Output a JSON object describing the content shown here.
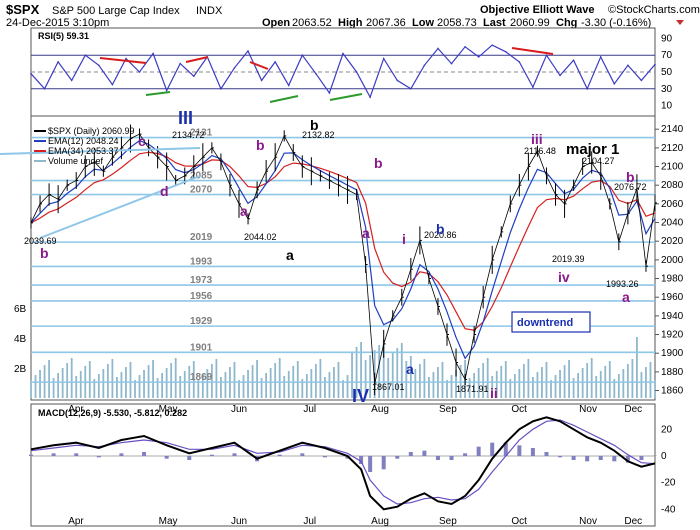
{
  "header": {
    "symbol": "$SPX",
    "name": "S&P 500 Large Cap Index",
    "exchange": "INDX",
    "datetime": "24-Dec-2015 3:10pm",
    "open_label": "Open",
    "open": "2063.52",
    "high_label": "High",
    "high": "2067.36",
    "low_label": "Low",
    "low": "2058.73",
    "last_label": "Last",
    "last": "2060.99",
    "chg_label": "Chg",
    "chg": "-3.30 (-0.16%)",
    "brand_left": "Objective Elliott Wave",
    "brand_right": "©StockCharts.com"
  },
  "chart_data": [
    {
      "type": "line",
      "title": "RSI(5) 59.31",
      "y_ticks": [
        10,
        30,
        50,
        70,
        90
      ],
      "ylim": [
        0,
        100
      ],
      "guides": [
        30,
        50,
        70
      ],
      "series": [
        {
          "name": "RSI(5)",
          "x_days": [
            0,
            6,
            12,
            18,
            24,
            30,
            36,
            42,
            48,
            54,
            60,
            66,
            72,
            78,
            84,
            90,
            96,
            102,
            108,
            114,
            120,
            126,
            132,
            138,
            144,
            150,
            156,
            162,
            168,
            174,
            180,
            186,
            192,
            198,
            204,
            210,
            216,
            222,
            228,
            234,
            240,
            246,
            252,
            258,
            264,
            270,
            276
          ],
          "values": [
            48,
            30,
            62,
            40,
            70,
            58,
            35,
            66,
            50,
            72,
            28,
            60,
            45,
            68,
            30,
            55,
            75,
            40,
            62,
            34,
            70,
            48,
            25,
            72,
            50,
            20,
            66,
            40,
            30,
            58,
            78,
            60,
            80,
            68,
            82,
            74,
            62,
            32,
            70,
            46,
            64,
            30,
            68,
            36,
            58,
            40,
            59
          ]
        }
      ]
    },
    {
      "type": "line",
      "title": "$SPX (Daily) 2060.99",
      "y_ticks": [
        1860,
        1880,
        1900,
        1920,
        1940,
        1960,
        1980,
        2000,
        2020,
        2040,
        2060,
        2080,
        2100,
        2120,
        2140
      ],
      "ylim": [
        1852,
        2152
      ],
      "x_tick_labels": [
        "Apr",
        "May",
        "Jun",
        "Jul",
        "Aug",
        "Sep",
        "Oct",
        "Nov",
        "Dec"
      ],
      "volume_tick_labels": [
        "2B",
        "4B",
        "6B"
      ],
      "levels": [
        {
          "value": 2131,
          "label": "2131"
        },
        {
          "value": 2085,
          "label": "2085"
        },
        {
          "value": 2070,
          "label": "2070"
        },
        {
          "value": 2019,
          "label": "2019"
        },
        {
          "value": 1993,
          "label": "1993"
        },
        {
          "value": 1973,
          "label": "1973"
        },
        {
          "value": 1956,
          "label": "1956"
        },
        {
          "value": 1929,
          "label": "1929"
        },
        {
          "value": 1901,
          "label": "1901"
        },
        {
          "value": 1869,
          "label": "1869"
        }
      ],
      "legend": [
        {
          "name": "$SPX (Daily) 2060.99",
          "color": "#000000"
        },
        {
          "name": "EMA(12) 2048.24",
          "color": "#1f3fbf"
        },
        {
          "name": "EMA(34) 2053.37",
          "color": "#d62020"
        },
        {
          "name": "Volume undef",
          "color": "#8fb8cc"
        }
      ],
      "price_labels": [
        {
          "text": "2039.69"
        },
        {
          "text": "2134.72"
        },
        {
          "text": "2044.02"
        },
        {
          "text": "2132.82"
        },
        {
          "text": "2020.86"
        },
        {
          "text": "1867.01"
        },
        {
          "text": "1871.91"
        },
        {
          "text": "2116.48"
        },
        {
          "text": "2104.27"
        },
        {
          "text": "2019.39"
        },
        {
          "text": "2076.72"
        },
        {
          "text": "1993.26"
        }
      ],
      "wave_labels": [
        {
          "text": "b",
          "color": "#8b1a8b"
        },
        {
          "text": "III",
          "color": "#1a2fb0"
        },
        {
          "text": "c",
          "color": "#8b1a8b"
        },
        {
          "text": "d",
          "color": "#8b1a8b"
        },
        {
          "text": "b",
          "color": "#8b1a8b"
        },
        {
          "text": "a",
          "color": "#8b1a8b"
        },
        {
          "text": "a",
          "color": "#000000"
        },
        {
          "text": "b",
          "color": "#000000"
        },
        {
          "text": "b",
          "color": "#8b1a8b"
        },
        {
          "text": "a",
          "color": "#8b1a8b"
        },
        {
          "text": "i",
          "color": "#8b1a8b"
        },
        {
          "text": "b",
          "color": "#1a2fb0"
        },
        {
          "text": "a",
          "color": "#1a2fb0"
        },
        {
          "text": "IV",
          "color": "#1a2fb0"
        },
        {
          "text": "ii",
          "color": "#8b1a8b"
        },
        {
          "text": "iii",
          "color": "#8b1a8b"
        },
        {
          "text": "major 1",
          "color": "#000000"
        },
        {
          "text": "iv",
          "color": "#8b1a8b"
        },
        {
          "text": "b",
          "color": "#8b1a8b"
        },
        {
          "text": "a",
          "color": "#8b1a8b"
        }
      ],
      "annotation": "downtrend",
      "series": [
        {
          "name": "$SPX",
          "x_days": [
            0,
            4,
            8,
            12,
            16,
            20,
            24,
            28,
            32,
            36,
            40,
            44,
            48,
            52,
            56,
            60,
            64,
            68,
            72,
            76,
            80,
            84,
            88,
            92,
            96,
            100,
            104,
            108,
            112,
            116,
            120,
            124,
            128,
            132,
            136,
            140,
            144,
            148,
            152,
            156,
            160,
            164,
            168,
            172,
            176,
            180,
            184,
            188,
            192,
            196,
            200,
            204,
            208,
            212,
            216,
            220,
            224,
            228,
            232,
            236,
            240,
            244,
            248,
            252,
            256,
            260,
            264,
            268,
            272,
            276
          ],
          "values": [
            2039.69,
            2060,
            2070,
            2065,
            2080,
            2085,
            2100,
            2105,
            2095,
            2110,
            2120,
            2130,
            2134.72,
            2120,
            2110,
            2100,
            2085,
            2090,
            2100,
            2110,
            2120,
            2105,
            2080,
            2060,
            2044.02,
            2075,
            2095,
            2110,
            2132.82,
            2115,
            2100,
            2095,
            2090,
            2085,
            2080,
            2075,
            2070,
            1995,
            1867.01,
            1910,
            1940,
            1960,
            1990,
            2020.86,
            1980,
            1950,
            1920,
            1890,
            1871.91,
            1920,
            1960,
            2000,
            2030,
            2060,
            2080,
            2100,
            2116.48,
            2090,
            2070,
            2060,
            2080,
            2100,
            2104.27,
            2090,
            2060,
            2019.39,
            2050,
            2076.72,
            1993.26,
            2060.99
          ]
        }
      ]
    },
    {
      "type": "line",
      "title": "MACD(12,26,9) -5.530, -5.812, 0.282",
      "y_ticks": [
        -40,
        -20,
        0,
        20
      ],
      "ylim": [
        -48,
        30
      ],
      "series": [
        {
          "name": "MACD(12,26,9)",
          "x_days": [
            0,
            10,
            20,
            30,
            40,
            50,
            60,
            70,
            80,
            90,
            100,
            110,
            120,
            130,
            140,
            146,
            150,
            156,
            162,
            168,
            174,
            180,
            186,
            192,
            198,
            204,
            210,
            216,
            222,
            228,
            234,
            240,
            246,
            252,
            258,
            264,
            270,
            276
          ],
          "values": [
            5,
            8,
            10,
            6,
            12,
            15,
            8,
            2,
            6,
            10,
            -2,
            4,
            10,
            6,
            0,
            -10,
            -30,
            -40,
            -38,
            -32,
            -28,
            -34,
            -36,
            -30,
            -18,
            -2,
            10,
            20,
            26,
            29,
            26,
            20,
            14,
            10,
            4,
            -4,
            -8,
            -5.53
          ]
        },
        {
          "name": "Signal",
          "x_days": [
            0,
            10,
            20,
            30,
            40,
            50,
            60,
            70,
            80,
            90,
            100,
            110,
            120,
            130,
            140,
            146,
            150,
            156,
            162,
            168,
            174,
            180,
            186,
            192,
            198,
            204,
            210,
            216,
            222,
            228,
            234,
            240,
            246,
            252,
            258,
            264,
            270,
            276
          ],
          "values": [
            4,
            6,
            8,
            7,
            10,
            12,
            10,
            5,
            5,
            8,
            2,
            3,
            8,
            7,
            2,
            -4,
            -18,
            -30,
            -36,
            -35,
            -32,
            -31,
            -33,
            -32,
            -25,
            -12,
            0,
            12,
            20,
            26,
            27,
            23,
            18,
            13,
            8,
            1,
            -5,
            -5.81
          ]
        }
      ]
    }
  ]
}
